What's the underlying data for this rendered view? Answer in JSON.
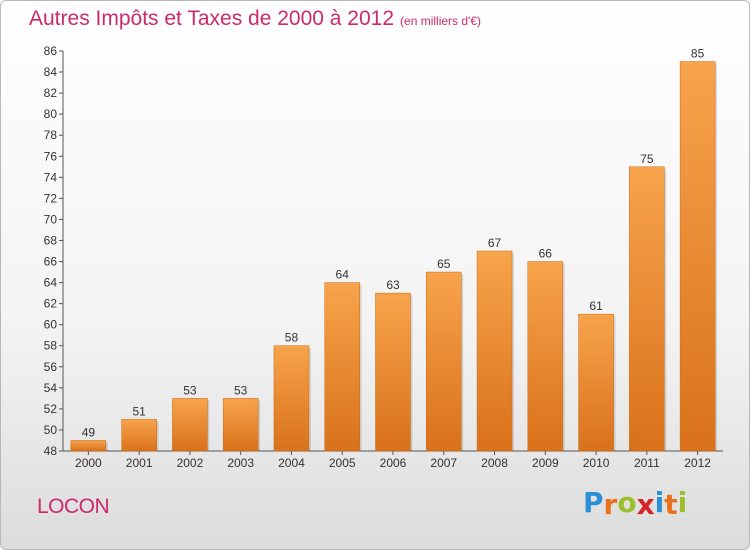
{
  "header": {
    "title": "Autres Impôts et Taxes de 2000 à 2012",
    "subtitle": "(en milliers d'€)"
  },
  "footer": {
    "commune": "LOCON",
    "logo_letters": [
      "P",
      "r",
      "o",
      "x",
      "i",
      "t",
      "i"
    ],
    "logo_colors": [
      "#2b8fd6",
      "#e8711a",
      "#9bbf2a",
      "#d6232a",
      "#2b8fd6",
      "#e8711a",
      "#9bbf2a"
    ]
  },
  "chart_data": {
    "type": "bar",
    "title": "Autres Impôts et Taxes de 2000 à 2012",
    "subtitle": "(en milliers d'€)",
    "xlabel": "",
    "ylabel": "",
    "categories": [
      "2000",
      "2001",
      "2002",
      "2003",
      "2004",
      "2005",
      "2006",
      "2007",
      "2008",
      "2009",
      "2010",
      "2011",
      "2012"
    ],
    "values": [
      49,
      51,
      53,
      53,
      58,
      64,
      63,
      65,
      67,
      66,
      61,
      75,
      85
    ],
    "ylim": [
      48,
      86
    ],
    "ytick_step": 2,
    "grid": false,
    "bar_color": "#f0922e"
  }
}
